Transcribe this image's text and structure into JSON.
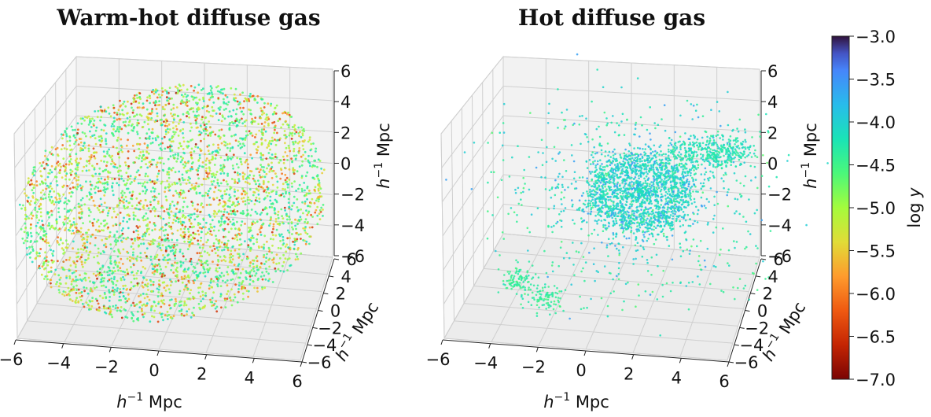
{
  "chart_data": [
    {
      "type": "scatter",
      "title": "Warm-hot diffuse gas",
      "projection": "3d",
      "xlabel": "h⁻¹ Mpc",
      "ylabel": "h⁻¹ Mpc",
      "zlabel": "h⁻¹ Mpc",
      "x_ticks": [
        "−6",
        "−4",
        "−2",
        "0",
        "2",
        "4",
        "6"
      ],
      "y_ticks": [
        "−6",
        "−4",
        "−2",
        "0",
        "2",
        "4",
        "6"
      ],
      "z_ticks": [
        "−6",
        "−4",
        "−2",
        "0",
        "2",
        "4",
        "6"
      ],
      "xlim": [
        -6,
        6
      ],
      "ylim": [
        -6,
        6
      ],
      "zlim": [
        -6,
        6
      ],
      "grid": true,
      "color_range_logy": [
        -6.7,
        -4.2
      ],
      "distribution": "sphere of radius ~6 with filaments, mostly log y between -5.0 and -4.3"
    },
    {
      "type": "scatter",
      "title": "Hot diffuse gas",
      "projection": "3d",
      "xlabel": "h⁻¹ Mpc",
      "ylabel": "h⁻¹ Mpc",
      "zlabel": "h⁻¹ Mpc",
      "x_ticks": [
        "−6",
        "−4",
        "−2",
        "0",
        "2",
        "4",
        "6"
      ],
      "y_ticks": [
        "−6",
        "−4",
        "−2",
        "0",
        "2",
        "4",
        "6"
      ],
      "z_ticks": [
        "−6",
        "−4",
        "−2",
        "0",
        "2",
        "4",
        "6"
      ],
      "xlim": [
        -6,
        6
      ],
      "ylim": [
        -6,
        6
      ],
      "zlim": [
        -6,
        6
      ],
      "grid": true,
      "color_range_logy": [
        -4.6,
        -3.3
      ],
      "distribution": "concentrated central halo around origin with ring structure, clumps near x=-4"
    }
  ],
  "colorbar": {
    "label": "log y",
    "label_main": "log",
    "label_var": "y",
    "colormap": "turbo",
    "range": [
      -7.0,
      -3.0
    ],
    "ticks": [
      "−3.0",
      "−3.5",
      "−4.0",
      "−4.5",
      "−5.0",
      "−5.5",
      "−6.0",
      "−6.5",
      "−7.0"
    ],
    "tick_values": [
      -3.0,
      -3.5,
      -4.0,
      -4.5,
      -5.0,
      -5.5,
      -6.0,
      -6.5,
      -7.0
    ]
  },
  "axis_unit_main": "h",
  "axis_unit_sup": "−1",
  "axis_unit_tail": " Mpc"
}
